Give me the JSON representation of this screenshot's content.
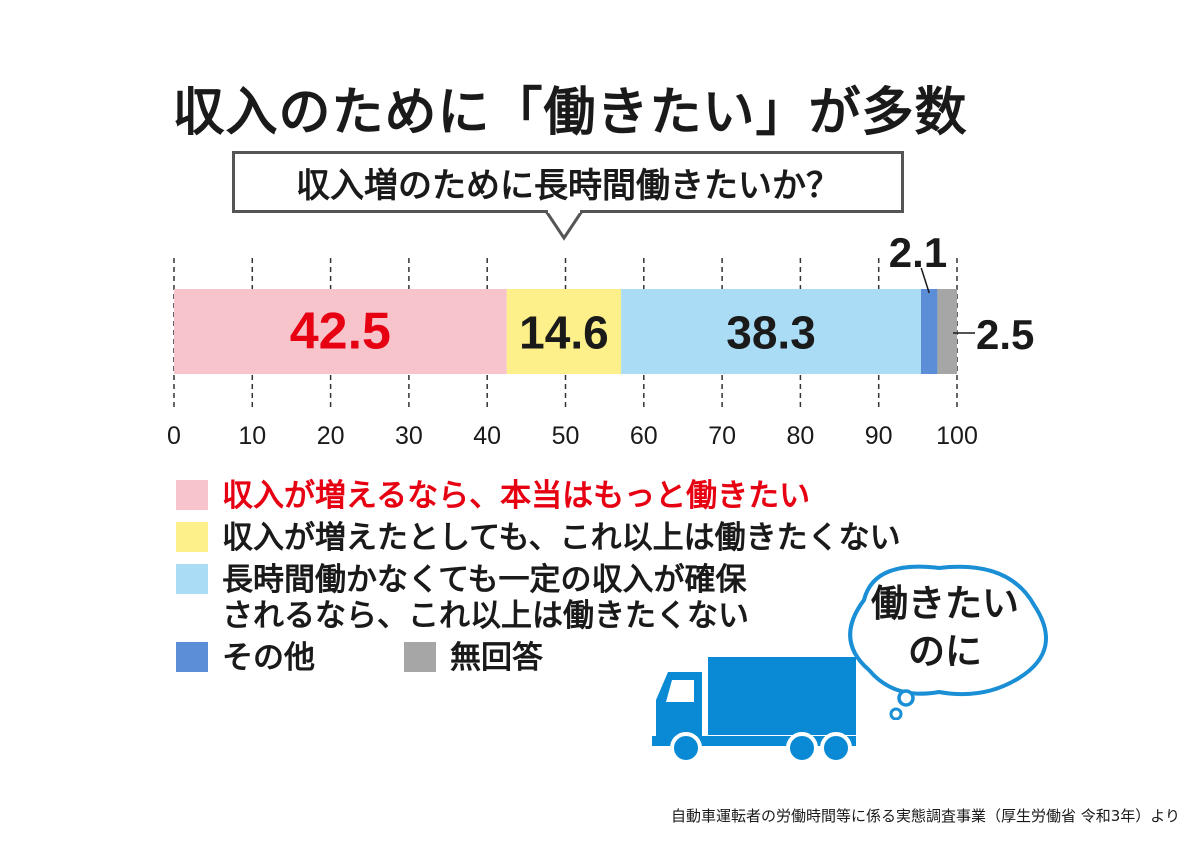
{
  "title": "収入のために「働きたい」が多数",
  "question": "収入増のために長時間働きたいか？",
  "chart_data": {
    "type": "bar",
    "orientation": "horizontal-stacked",
    "series": [
      {
        "name": "収入が増えるなら、本当はもっと働きたい",
        "value": 42.5,
        "color": "#f7c4cc",
        "label_color": "#e60012",
        "label": "42.5"
      },
      {
        "name": "収入が増えたとしても、これ以上は働きたくない",
        "value": 14.6,
        "color": "#fdf08a",
        "label_color": "#1a1a1a",
        "label": "14.6"
      },
      {
        "name": "長時間働かなくても一定の収入が確保\nされるなら、これ以上は働きたくない",
        "value": 38.3,
        "color": "#aadcf5",
        "label_color": "#1a1a1a",
        "label": "38.3"
      },
      {
        "name": "その他",
        "value": 2.1,
        "color": "#5b8ed6",
        "label_color": "#1a1a1a",
        "label": "2.1"
      },
      {
        "name": "無回答",
        "value": 2.5,
        "color": "#a6a6a6",
        "label_color": "#1a1a1a",
        "label": "2.5"
      }
    ],
    "xlim": [
      0,
      100
    ],
    "ticks": [
      "0",
      "10",
      "20",
      "30",
      "40",
      "50",
      "60",
      "70",
      "80",
      "90",
      "100"
    ],
    "grid": "dashed vertical"
  },
  "legend_label_colors": [
    "#e60012",
    "#1a1a1a",
    "#1a1a1a",
    "#1a1a1a",
    "#1a1a1a"
  ],
  "thought_bubble": "働きたい\nのに",
  "source": "自動車運転者の労働時間等に係る実態調査事業（厚生労働省 令和3年）より",
  "truck_icon": "truck-icon",
  "truck_color": "#0a8ad4"
}
